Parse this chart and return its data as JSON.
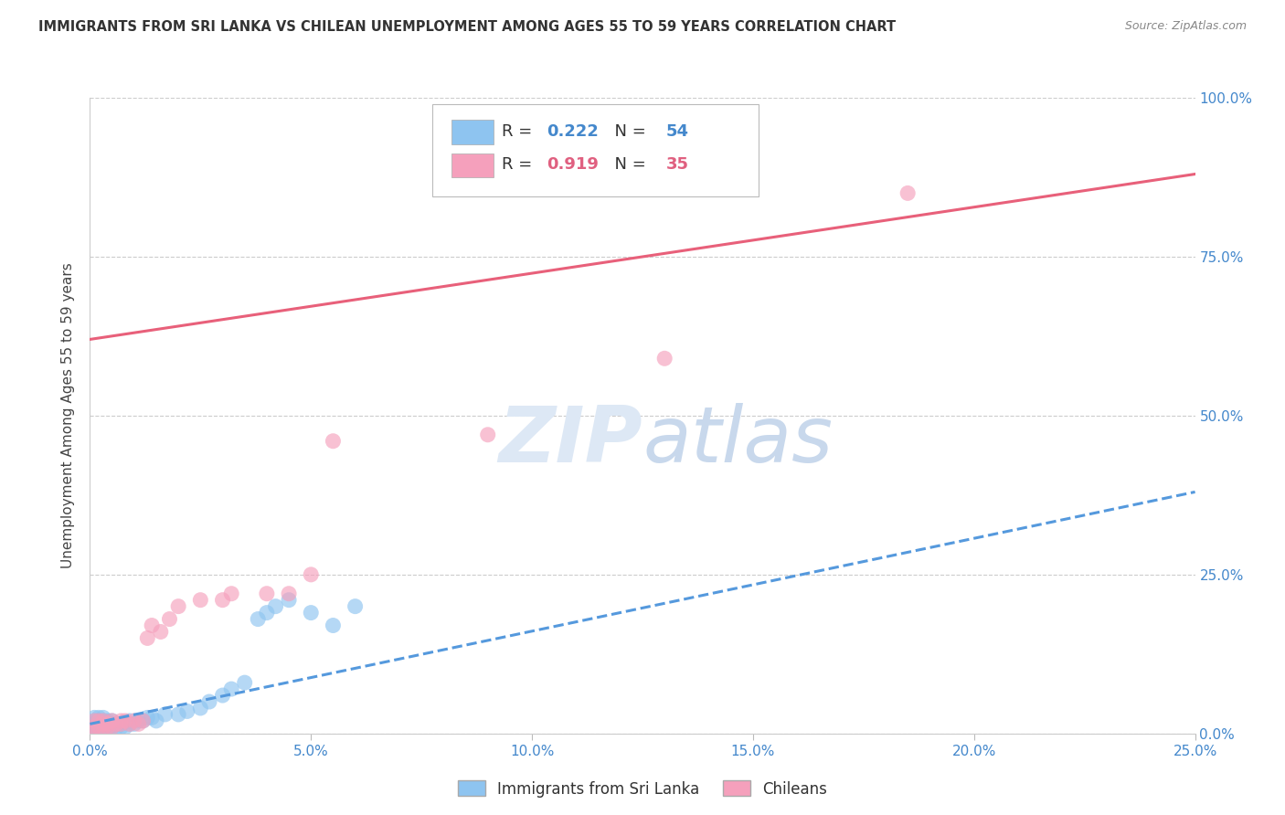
{
  "title": "IMMIGRANTS FROM SRI LANKA VS CHILEAN UNEMPLOYMENT AMONG AGES 55 TO 59 YEARS CORRELATION CHART",
  "source": "Source: ZipAtlas.com",
  "ylabel": "Unemployment Among Ages 55 to 59 years",
  "xlim": [
    0.0,
    0.25
  ],
  "ylim": [
    0.0,
    1.0
  ],
  "xticks": [
    0.0,
    0.05,
    0.1,
    0.15,
    0.2,
    0.25
  ],
  "yticks_right": [
    0.0,
    0.25,
    0.5,
    0.75,
    1.0
  ],
  "ytick_labels_right": [
    "0.0%",
    "25.0%",
    "50.0%",
    "75.0%",
    "100.0%"
  ],
  "xtick_labels": [
    "0.0%",
    "5.0%",
    "10.0%",
    "15.0%",
    "20.0%",
    "25.0%"
  ],
  "legend_label1": "Immigrants from Sri Lanka",
  "legend_label2": "Chileans",
  "R1": "0.222",
  "N1": "54",
  "R2": "0.919",
  "N2": "35",
  "color_blue": "#8ec4f0",
  "color_pink": "#f5a0bc",
  "color_blue_line": "#5599dd",
  "color_pink_line": "#e8607a",
  "color_blue_text": "#4488cc",
  "color_pink_text": "#e06080",
  "background_color": "#ffffff",
  "watermark_color": "#dde8f5",
  "blue_scatter_x": [
    0.0005,
    0.0008,
    0.001,
    0.001,
    0.001,
    0.001,
    0.001,
    0.002,
    0.002,
    0.002,
    0.002,
    0.002,
    0.002,
    0.003,
    0.003,
    0.003,
    0.003,
    0.003,
    0.003,
    0.004,
    0.004,
    0.004,
    0.004,
    0.005,
    0.005,
    0.005,
    0.006,
    0.006,
    0.007,
    0.007,
    0.008,
    0.009,
    0.009,
    0.01,
    0.011,
    0.012,
    0.013,
    0.014,
    0.015,
    0.017,
    0.02,
    0.022,
    0.025,
    0.027,
    0.03,
    0.032,
    0.035,
    0.038,
    0.04,
    0.042,
    0.045,
    0.05,
    0.055,
    0.06
  ],
  "blue_scatter_y": [
    0.005,
    0.01,
    0.005,
    0.01,
    0.015,
    0.02,
    0.025,
    0.005,
    0.008,
    0.01,
    0.015,
    0.02,
    0.025,
    0.005,
    0.008,
    0.01,
    0.015,
    0.02,
    0.025,
    0.005,
    0.01,
    0.015,
    0.02,
    0.01,
    0.015,
    0.02,
    0.01,
    0.015,
    0.01,
    0.015,
    0.01,
    0.015,
    0.02,
    0.015,
    0.02,
    0.02,
    0.025,
    0.025,
    0.02,
    0.03,
    0.03,
    0.035,
    0.04,
    0.05,
    0.06,
    0.07,
    0.08,
    0.18,
    0.19,
    0.2,
    0.21,
    0.19,
    0.17,
    0.2
  ],
  "pink_scatter_x": [
    0.0005,
    0.001,
    0.001,
    0.002,
    0.002,
    0.003,
    0.003,
    0.003,
    0.004,
    0.004,
    0.005,
    0.005,
    0.006,
    0.007,
    0.007,
    0.008,
    0.009,
    0.01,
    0.011,
    0.012,
    0.013,
    0.014,
    0.016,
    0.018,
    0.02,
    0.025,
    0.03,
    0.032,
    0.04,
    0.045,
    0.05,
    0.055,
    0.09,
    0.13,
    0.185
  ],
  "pink_scatter_y": [
    0.005,
    0.01,
    0.02,
    0.01,
    0.02,
    0.01,
    0.015,
    0.02,
    0.01,
    0.015,
    0.01,
    0.02,
    0.015,
    0.015,
    0.02,
    0.02,
    0.015,
    0.02,
    0.015,
    0.02,
    0.15,
    0.17,
    0.16,
    0.18,
    0.2,
    0.21,
    0.21,
    0.22,
    0.22,
    0.22,
    0.25,
    0.46,
    0.47,
    0.59,
    0.85
  ],
  "blue_line_x": [
    0.0,
    0.25
  ],
  "blue_line_y": [
    0.015,
    0.38
  ],
  "pink_line_x": [
    0.0,
    0.25
  ],
  "pink_line_y": [
    0.62,
    0.88
  ]
}
